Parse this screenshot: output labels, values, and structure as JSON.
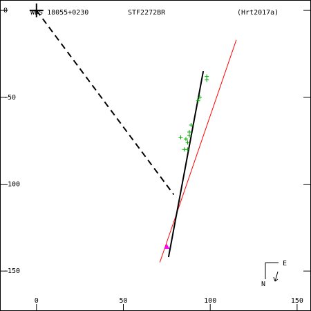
{
  "header": {
    "wds_id": "WDS 18055+0230",
    "discoverer": "STF2272BR",
    "reference": "(Hrt2017a)"
  },
  "compass": {
    "north_label": "N",
    "east_label": "E"
  },
  "colors": {
    "orbit": "#000000",
    "secondary_line": "#ff0000",
    "observations": "#00aa00",
    "latest_observation": "#ff00ff",
    "axes": "#000000"
  },
  "chart_data": {
    "type": "scatter",
    "title": "",
    "xlabel": "",
    "ylabel": "",
    "xlim": [
      -21,
      158
    ],
    "ylim": [
      -173,
      6
    ],
    "x_ticks": [
      0,
      50,
      100,
      150
    ],
    "y_ticks": [
      0,
      -50,
      -100,
      -150
    ],
    "primary_star": [
      0,
      0
    ],
    "orbit_arc": [
      [
        96,
        -35
      ],
      [
        76,
        -142
      ]
    ],
    "connector_line": [
      [
        0,
        0
      ],
      [
        79,
        -106
      ]
    ],
    "red_line": [
      [
        115,
        -17
      ],
      [
        71,
        -145
      ]
    ],
    "observations": [
      [
        98,
        -38
      ],
      [
        98,
        -40
      ],
      [
        94,
        -50
      ],
      [
        93,
        -52
      ],
      [
        89,
        -66
      ],
      [
        88,
        -70
      ],
      [
        88,
        -72
      ],
      [
        86,
        -74
      ],
      [
        83,
        -73
      ],
      [
        87,
        -76
      ],
      [
        87,
        -80
      ],
      [
        85,
        -80
      ]
    ],
    "latest_observation": [
      75,
      -136
    ]
  }
}
